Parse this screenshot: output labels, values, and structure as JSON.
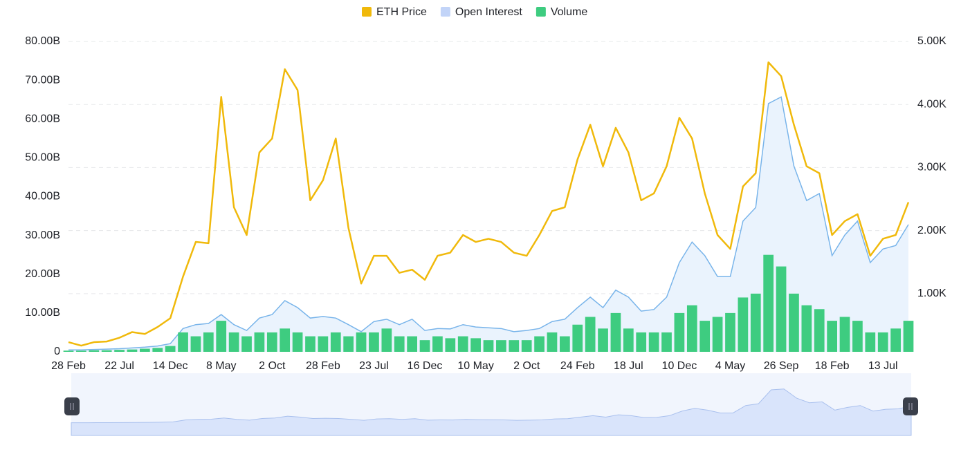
{
  "chart_data": {
    "type": "combo",
    "categories": [
      "28 Feb",
      null,
      null,
      null,
      "22 Jul",
      null,
      null,
      null,
      "14 Dec",
      null,
      null,
      null,
      "8 May",
      null,
      null,
      null,
      "2 Oct",
      null,
      null,
      null,
      "28 Feb",
      null,
      null,
      null,
      "23 Jul",
      null,
      null,
      null,
      "16 Dec",
      null,
      null,
      null,
      "10 May",
      null,
      null,
      null,
      "2 Oct",
      null,
      null,
      null,
      "24 Feb",
      null,
      null,
      null,
      "18 Jul",
      null,
      null,
      null,
      "10 Dec",
      null,
      null,
      null,
      "4 May",
      null,
      null,
      null,
      "26 Sep",
      null,
      null,
      null,
      "18 Feb",
      null,
      null,
      null,
      "13 Jul",
      null,
      null
    ],
    "series": [
      {
        "name": "ETH Price",
        "color": "#f0b90b",
        "axis": "y2",
        "kind": "line",
        "values": [
          230,
          175,
          230,
          240,
          300,
          390,
          360,
          470,
          610,
          1270,
          1820,
          1800,
          4120,
          2370,
          1930,
          3240,
          3460,
          4560,
          4230,
          2480,
          2800,
          3460,
          2040,
          1160,
          1600,
          1600,
          1330,
          1380,
          1220,
          1600,
          1650,
          1930,
          1820,
          1870,
          1820,
          1650,
          1600,
          1930,
          2310,
          2370,
          3130,
          3680,
          3020,
          3630,
          3240,
          2480,
          2590,
          3020,
          3790,
          3460,
          2590,
          1930,
          1710,
          2700,
          2910,
          4670,
          4450,
          3680,
          3020,
          2910,
          1930,
          2150,
          2260,
          1600,
          1870,
          1930,
          2450
        ]
      },
      {
        "name": "Open Interest",
        "color": "#c2d4f8",
        "kind": "area",
        "values": [
          0.5,
          0.5,
          0.6,
          0.7,
          0.8,
          1,
          1.2,
          1.5,
          2.1,
          6,
          7,
          7.3,
          9.6,
          7,
          5.5,
          8.7,
          9.6,
          13.2,
          11.4,
          8.7,
          9.1,
          8.7,
          7,
          5.2,
          7.8,
          8.4,
          7,
          8.4,
          5.5,
          6,
          5.9,
          7,
          6.4,
          6.2,
          6,
          5.2,
          5.5,
          6,
          7.8,
          8.4,
          11.4,
          14.1,
          11.4,
          15.9,
          14.1,
          10.5,
          10.9,
          14.1,
          23,
          28.3,
          24.8,
          19.4,
          19.4,
          33.7,
          37.2,
          64,
          65.7,
          47.9,
          39,
          40.8,
          24.8,
          30.1,
          33.7,
          23,
          26.5,
          27.4,
          32.8
        ]
      },
      {
        "name": "Volume",
        "color": "#3ecc80",
        "kind": "bar",
        "values": [
          0.3,
          0.3,
          0.4,
          0.4,
          0.5,
          0.6,
          0.8,
          1,
          1.5,
          5,
          4,
          5,
          8,
          5,
          4,
          5,
          5,
          6,
          5,
          4,
          4,
          5,
          4,
          5,
          5,
          6,
          4,
          4,
          3,
          4,
          3.5,
          4,
          3.5,
          3,
          3,
          3,
          3,
          4,
          5,
          4,
          7,
          9,
          6,
          10,
          6,
          5,
          5,
          5,
          10,
          12,
          8,
          9,
          10,
          14,
          15,
          25,
          22,
          15,
          12,
          11,
          8,
          9,
          8,
          5,
          5,
          6,
          8
        ]
      }
    ],
    "ylim": [
      0,
      80
    ],
    "yticks": [
      0,
      {
        "value": 10,
        "label": "10.00B"
      },
      {
        "value": 20,
        "label": "20.00B"
      },
      {
        "value": 30,
        "label": "30.00B"
      },
      {
        "value": 40,
        "label": "40.00B"
      },
      {
        "value": 50,
        "label": "50.00B"
      },
      {
        "value": 60,
        "label": "60.00B"
      },
      {
        "value": 70,
        "label": "70.00B"
      },
      {
        "value": 80,
        "label": "80.00B"
      }
    ],
    "y2lim": [
      77,
      5000
    ],
    "y2ticks": [
      {
        "value": 1000,
        "label": "1.00K"
      },
      {
        "value": 2000,
        "label": "2.00K"
      },
      {
        "value": 3000,
        "label": "3.00K"
      },
      {
        "value": 4000,
        "label": "4.00K"
      },
      {
        "value": 5000,
        "label": "5.00K"
      }
    ],
    "grid": true,
    "legend": "top"
  }
}
